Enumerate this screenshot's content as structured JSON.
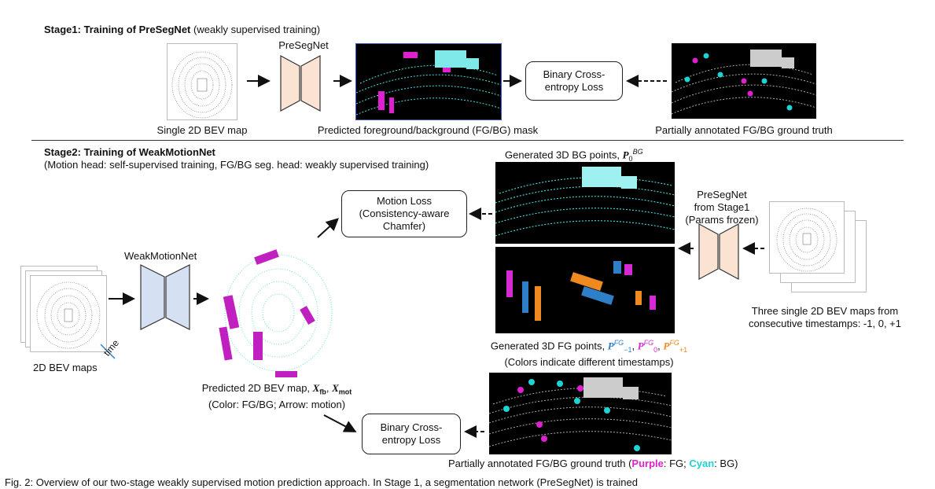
{
  "stage1": {
    "heading_bold": "Stage1: Training of PreSegNet",
    "heading_rest": " (weakly supervised training)",
    "net_label": "PreSegNet",
    "input_caption": "Single 2D BEV map",
    "mask_caption": "Predicted foreground/background (FG/BG) mask",
    "loss_line1": "Binary Cross-",
    "loss_line2": "entropy Loss",
    "gt_caption": "Partially annotated FG/BG ground truth"
  },
  "stage2": {
    "heading_bold": "Stage2: Training of WeakMotionNet",
    "subheading": "(Motion head: self-supervised training, FG/BG seg. head: weakly supervised training)",
    "bg_points_caption": "Generated 3D BG points, ",
    "bg_points_symbol": "P",
    "bg_points_sub": "0",
    "bg_points_sup": "BG",
    "motion_loss_line1": "Motion Loss",
    "motion_loss_line2": "(Consistency-aware",
    "motion_loss_line3": "Chamfer)",
    "presegnet_line1": "PreSegNet",
    "presegnet_line2": "from Stage1",
    "presegnet_line3": "(Params frozen)",
    "weakmotionnet_label": "WeakMotionNet",
    "bev_maps_caption": "2D BEV maps",
    "time_label": "time",
    "predicted_caption": "Predicted 2D BEV map, ",
    "predicted_sym1": "X",
    "predicted_sub1": "fb",
    "predicted_sym2": "X",
    "predicted_sub2": "mot",
    "predicted_caption2": "(Color: FG/BG; Arrow: motion)",
    "fg_points_caption": "Generated 3D FG points, ",
    "fg_sym": "P",
    "fg_sup": "FG",
    "fg_sub1": "−1",
    "fg_sub2": "0",
    "fg_sub3": "+1",
    "fg_caption2": "(Colors indicate different timestamps)",
    "three_maps_line1": "Three single 2D BEV maps from",
    "three_maps_line2": "consecutive timestamps: -1, 0, +1",
    "bce_line1": "Binary Cross-",
    "bce_line2": "entropy Loss",
    "gt_caption_pre": "Partially annotated FG/BG ground truth (",
    "gt_purple": "Purple",
    "gt_mid1": ": FG; ",
    "gt_cyan": "Cyan",
    "gt_mid2": ": BG)"
  },
  "footer_text": "Fig. 2: Overview of our two-stage weakly supervised motion prediction approach. In Stage 1, a segmentation network (PreSegNet) is trained",
  "colors": {
    "net_stage1": "#fbe3d3",
    "net_stage2": "#d6e0f3",
    "purple": "#e020d0",
    "cyan": "#1fd3d3",
    "orange": "#f08a20",
    "blue": "#2f7fc8",
    "magenta": "#d629d6"
  }
}
